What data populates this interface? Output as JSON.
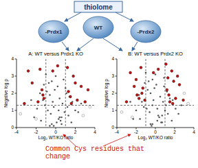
{
  "diagram": {
    "box": "thiolome",
    "nodes": [
      "-Prdx1",
      "WT",
      "-Prdx2"
    ],
    "caption": "Common Cys residues that change"
  },
  "chart_data": [
    {
      "type": "scatter",
      "title": "A: WT versus Prdx1 KO",
      "x_label": "Log₂ WT/KO ratio",
      "y_label": "Negative log p",
      "xlim": [
        -4,
        4
      ],
      "xticks": [
        -4,
        -2,
        0,
        2,
        4
      ],
      "ylim": [
        0,
        4
      ],
      "yticks": [
        0,
        1,
        2,
        3,
        4
      ],
      "threshold_y": 1.3,
      "threshold_x": [
        -1,
        1
      ],
      "series": [
        {
          "color": "#555555",
          "marker": "circle",
          "x": [
            -0.2,
            0.1,
            0.3,
            -0.5,
            0.6,
            -0.8,
            0.9,
            -1.1,
            1.2,
            -0.3,
            0.4,
            -0.6,
            0.7,
            -1.3,
            1.4,
            -1.6,
            1.7,
            -0.1,
            0.2,
            -0.9,
            1.0,
            -1.9,
            2.0,
            -0.4,
            0.5,
            -0.7,
            0.8,
            -1.2,
            1.3,
            -2.2,
            2.3,
            0.0,
            -0.2,
            0.3,
            -1.5,
            1.6,
            -0.6,
            0.6,
            -2.5,
            2.6,
            -1.0,
            1.1,
            -0.4,
            0.4
          ],
          "values": [
            0.1,
            0.3,
            0.5,
            0.8,
            0.6,
            1.0,
            0.9,
            1.3,
            1.2,
            1.5,
            1.7,
            1.9,
            1.4,
            1.6,
            1.8,
            2.0,
            1.5,
            2.2,
            2.4,
            2.1,
            2.3,
            1.1,
            1.0,
            0.2,
            0.4,
            2.6,
            2.8,
            2.5,
            0.7,
            0.6,
            0.9,
            3.0,
            1.2,
            1.0,
            0.4,
            0.3,
            0.1,
            0.2,
            1.6,
            1.4,
            3.1,
            2.0,
            2.7,
            0.6
          ]
        },
        {
          "color": "#cc1111",
          "marker": "circle",
          "x": [
            -2.8,
            -2.4,
            -1.6,
            -1.4,
            -1.2,
            1.3,
            1.5,
            1.8,
            2.2,
            2.6,
            3.0,
            -3.2,
            -1.8,
            1.2,
            2.0,
            -1.3,
            1.6,
            0.2,
            -0.3,
            3.3
          ],
          "values": [
            3.3,
            2.6,
            3.4,
            2.2,
            1.7,
            2.1,
            1.8,
            3.0,
            1.6,
            2.4,
            1.5,
            1.4,
            1.5,
            3.5,
            2.6,
            1.9,
            1.4,
            3.6,
            3.3,
            2.2
          ]
        },
        {
          "color": "#555555",
          "marker": "open",
          "x": [
            -3.6,
            3.5,
            -2.0,
            2.8
          ],
          "values": [
            0.8,
            1.2,
            0.5,
            0.7
          ]
        }
      ]
    },
    {
      "type": "scatter",
      "title": "B: WT versus Prdx2 KO",
      "x_label": "Log₂ WT/KO ratio",
      "y_label": "Negative log p",
      "xlim": [
        -4,
        4
      ],
      "xticks": [
        -4,
        -2,
        0,
        2,
        4
      ],
      "ylim": [
        0,
        4
      ],
      "yticks": [
        0,
        1,
        2,
        3,
        4
      ],
      "threshold_y": 1.3,
      "threshold_x": [
        -1,
        1
      ],
      "series": [
        {
          "color": "#555555",
          "marker": "circle",
          "x": [
            -0.3,
            0.2,
            0.4,
            -0.6,
            0.7,
            -0.9,
            1.0,
            -1.2,
            1.1,
            -0.2,
            0.5,
            -0.5,
            0.8,
            -1.4,
            1.5,
            -1.7,
            1.8,
            -0.1,
            0.1,
            -0.8,
            0.9,
            -2.0,
            2.1,
            -0.4,
            0.6,
            -0.7,
            0.9,
            -1.1,
            1.3,
            -2.3,
            2.4,
            0.0,
            -0.3,
            0.2,
            -1.6,
            1.7,
            -0.5,
            0.7,
            -2.6,
            2.7,
            -1.0,
            1.2,
            -0.3,
            0.3
          ],
          "values": [
            0.2,
            0.4,
            0.6,
            0.9,
            0.7,
            1.1,
            1.0,
            1.2,
            1.3,
            1.6,
            1.8,
            2.0,
            1.5,
            1.5,
            1.7,
            1.9,
            1.6,
            2.3,
            2.5,
            2.2,
            2.4,
            1.0,
            1.1,
            0.1,
            0.3,
            2.7,
            2.9,
            2.6,
            0.8,
            0.5,
            0.8,
            3.1,
            1.3,
            1.1,
            0.5,
            0.4,
            0.2,
            0.3,
            1.5,
            1.3,
            3.2,
            2.1,
            2.8,
            0.7
          ]
        },
        {
          "color": "#cc1111",
          "marker": "circle",
          "x": [
            -2.6,
            -2.0,
            -1.5,
            -1.3,
            -1.1,
            1.2,
            1.4,
            1.7,
            2.1,
            2.5,
            2.9,
            -3.0,
            -1.9,
            1.1,
            1.9,
            -1.4,
            1.5,
            1.3,
            -2.2,
            2.3,
            0.3,
            -0.2,
            1.8,
            -1.7
          ],
          "values": [
            3.2,
            2.8,
            3.5,
            2.3,
            1.6,
            2.2,
            1.9,
            3.3,
            1.7,
            2.5,
            1.6,
            1.5,
            1.9,
            3.7,
            2.7,
            2.0,
            1.5,
            2.9,
            2.4,
            3.0,
            3.4,
            3.2,
            1.4,
            1.7
          ]
        },
        {
          "color": "#555555",
          "marker": "open",
          "x": [
            -3.5,
            3.4,
            -2.4,
            3.0
          ],
          "values": [
            0.9,
            1.4,
            0.6,
            2.0
          ]
        }
      ]
    }
  ]
}
